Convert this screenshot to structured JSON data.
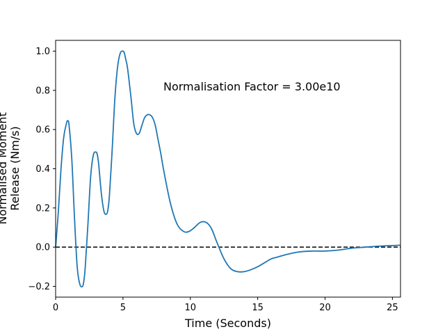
{
  "chart_data": {
    "type": "line",
    "title": "",
    "xlabel": "Time (Seconds)",
    "ylabel_lines": [
      "Normalised Moment",
      "Release (Nm/s)"
    ],
    "annotation": "Normalisation Factor = 3.00e10",
    "xlim": [
      0,
      25.6
    ],
    "ylim": [
      -0.255,
      1.055
    ],
    "x_ticks": [
      0,
      5,
      10,
      15,
      20,
      25
    ],
    "x_tick_labels": [
      "0",
      "5",
      "10",
      "15",
      "20",
      "25"
    ],
    "y_ticks": [
      -0.2,
      0.0,
      0.2,
      0.4,
      0.6,
      0.8,
      1.0
    ],
    "y_tick_labels": [
      "−0.2",
      "0.0",
      "0.2",
      "0.4",
      "0.6",
      "0.8",
      "1.0"
    ],
    "grid": false,
    "reference_line": {
      "y": 0.0,
      "style": "dashed",
      "color": "#000000"
    },
    "series": [
      {
        "color": "#1f77b4",
        "x": [
          0,
          0.2,
          0.4,
          0.6,
          0.8,
          0.9,
          1.0,
          1.2,
          1.4,
          1.6,
          1.8,
          2.0,
          2.1,
          2.2,
          2.4,
          2.6,
          2.8,
          3.0,
          3.1,
          3.2,
          3.4,
          3.6,
          3.8,
          3.9,
          4.0,
          4.2,
          4.4,
          4.6,
          4.8,
          5.0,
          5.1,
          5.2,
          5.3,
          5.4,
          5.6,
          5.8,
          6.0,
          6.2,
          6.4,
          6.6,
          6.8,
          7.0,
          7.2,
          7.4,
          7.6,
          7.8,
          8.0,
          8.5,
          9.0,
          9.5,
          9.9,
          10.3,
          10.7,
          11.0,
          11.3,
          11.6,
          12.0,
          12.5,
          13.0,
          13.5,
          14.0,
          14.5,
          15.0,
          15.5,
          16.0,
          16.5,
          17.0,
          18.0,
          19.0,
          20.0,
          21.0,
          22.0,
          23.0,
          24.0,
          25.0,
          25.6
        ],
        "y": [
          0.0,
          0.18,
          0.4,
          0.56,
          0.63,
          0.645,
          0.62,
          0.45,
          0.15,
          -0.1,
          -0.19,
          -0.2,
          -0.17,
          -0.1,
          0.12,
          0.36,
          0.47,
          0.485,
          0.47,
          0.42,
          0.27,
          0.18,
          0.17,
          0.2,
          0.27,
          0.5,
          0.76,
          0.92,
          0.99,
          1.0,
          0.99,
          0.96,
          0.93,
          0.88,
          0.76,
          0.63,
          0.58,
          0.58,
          0.62,
          0.66,
          0.675,
          0.675,
          0.66,
          0.62,
          0.55,
          0.48,
          0.4,
          0.23,
          0.12,
          0.08,
          0.08,
          0.1,
          0.125,
          0.13,
          0.12,
          0.09,
          0.02,
          -0.06,
          -0.11,
          -0.125,
          -0.125,
          -0.115,
          -0.1,
          -0.08,
          -0.06,
          -0.05,
          -0.04,
          -0.025,
          -0.02,
          -0.02,
          -0.015,
          -0.005,
          0.0,
          0.005,
          0.008,
          0.01
        ]
      }
    ]
  }
}
